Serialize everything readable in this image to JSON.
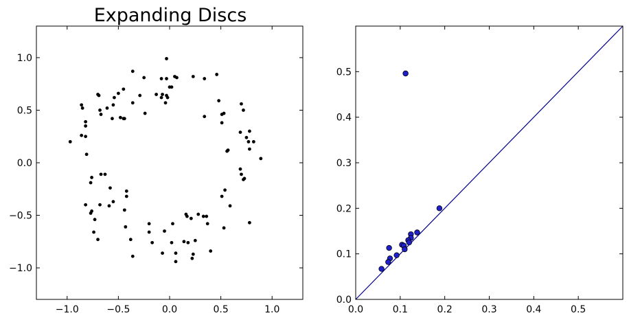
{
  "chart_data": [
    {
      "type": "scatter",
      "title": "Expanding Discs",
      "xlabel": "",
      "ylabel": "",
      "xlim": [
        -1.3,
        1.3
      ],
      "ylim": [
        -1.3,
        1.3
      ],
      "xticks": [
        -1.0,
        -0.5,
        0.0,
        0.5,
        1.0
      ],
      "yticks": [
        -1.0,
        -0.5,
        0.0,
        0.5,
        1.0
      ],
      "xtick_labels": [
        "−1.0",
        "−0.5",
        "0.0",
        "0.5",
        "1.0"
      ],
      "ytick_labels": [
        "−1.0",
        "−0.5",
        "0.0",
        "0.5",
        "1.0"
      ],
      "grid": false,
      "marker_color": "#000000",
      "points": [
        [
          -0.03,
          0.99
        ],
        [
          0.05,
          0.82
        ],
        [
          0.07,
          0.81
        ],
        [
          -0.36,
          0.87
        ],
        [
          -0.25,
          0.81
        ],
        [
          -0.08,
          0.8
        ],
        [
          -0.03,
          0.8
        ],
        [
          0.23,
          0.82
        ],
        [
          0.34,
          0.8
        ],
        [
          0.46,
          0.84
        ],
        [
          -0.45,
          0.7
        ],
        [
          -0.5,
          0.66
        ],
        [
          -0.29,
          0.64
        ],
        [
          -0.13,
          0.65
        ],
        [
          -0.08,
          0.62
        ],
        [
          -0.07,
          0.65
        ],
        [
          -0.03,
          0.64
        ],
        [
          0.02,
          0.72
        ],
        [
          0.0,
          0.72
        ],
        [
          -0.02,
          0.62
        ],
        [
          -0.7,
          0.65
        ],
        [
          -0.69,
          0.64
        ],
        [
          -0.54,
          0.62
        ],
        [
          -0.36,
          0.57
        ],
        [
          -0.61,
          0.52
        ],
        [
          -0.55,
          0.55
        ],
        [
          -0.24,
          0.47
        ],
        [
          -0.04,
          0.57
        ],
        [
          0.48,
          0.59
        ],
        [
          0.7,
          0.56
        ],
        [
          -0.68,
          0.5
        ],
        [
          -0.67,
          0.46
        ],
        [
          -0.85,
          0.52
        ],
        [
          -0.86,
          0.55
        ],
        [
          -0.56,
          0.42
        ],
        [
          -0.48,
          0.43
        ],
        [
          -0.45,
          0.42
        ],
        [
          -0.44,
          0.42
        ],
        [
          0.34,
          0.44
        ],
        [
          0.51,
          0.46
        ],
        [
          0.53,
          0.47
        ],
        [
          0.72,
          0.5
        ],
        [
          -0.82,
          0.39
        ],
        [
          -0.82,
          0.35
        ],
        [
          -0.86,
          0.26
        ],
        [
          -0.82,
          0.25
        ],
        [
          0.51,
          0.38
        ],
        [
          0.69,
          0.29
        ],
        [
          0.78,
          0.3
        ],
        [
          0.75,
          0.24
        ],
        [
          -0.97,
          0.2
        ],
        [
          0.77,
          0.2
        ],
        [
          0.82,
          0.2
        ],
        [
          0.56,
          0.11
        ],
        [
          0.57,
          0.12
        ],
        [
          0.78,
          0.13
        ],
        [
          -0.81,
          0.08
        ],
        [
          0.89,
          0.04
        ],
        [
          -0.67,
          -0.11
        ],
        [
          -0.63,
          -0.11
        ],
        [
          -0.76,
          -0.14
        ],
        [
          -0.77,
          -0.19
        ],
        [
          -0.58,
          -0.24
        ],
        [
          0.69,
          -0.06
        ],
        [
          0.7,
          -0.11
        ],
        [
          0.73,
          -0.15
        ],
        [
          0.72,
          -0.16
        ],
        [
          -0.42,
          -0.27
        ],
        [
          -0.42,
          -0.32
        ],
        [
          -0.55,
          -0.37
        ],
        [
          -0.68,
          -0.4
        ],
        [
          -0.59,
          -0.41
        ],
        [
          -0.82,
          -0.4
        ],
        [
          -0.76,
          -0.46
        ],
        [
          -0.44,
          -0.45
        ],
        [
          0.54,
          -0.26
        ],
        [
          0.51,
          -0.32
        ],
        [
          0.59,
          -0.41
        ],
        [
          -0.77,
          -0.48
        ],
        [
          -0.73,
          -0.54
        ],
        [
          -0.2,
          -0.58
        ],
        [
          0.16,
          -0.49
        ],
        [
          0.17,
          -0.51
        ],
        [
          0.21,
          -0.53
        ],
        [
          0.28,
          -0.49
        ],
        [
          0.33,
          -0.51
        ],
        [
          0.36,
          -0.51
        ],
        [
          0.37,
          -0.58
        ],
        [
          0.78,
          -0.57
        ],
        [
          -0.43,
          -0.61
        ],
        [
          -0.05,
          -0.65
        ],
        [
          0.03,
          -0.58
        ],
        [
          0.53,
          -0.62
        ],
        [
          -0.74,
          -0.66
        ],
        [
          -0.2,
          -0.66
        ],
        [
          -0.7,
          -0.73
        ],
        [
          -0.38,
          -0.73
        ],
        [
          -0.17,
          -0.76
        ],
        [
          0.14,
          -0.75
        ],
        [
          0.02,
          -0.76
        ],
        [
          0.18,
          -0.76
        ],
        [
          0.25,
          -0.74
        ],
        [
          -0.07,
          -0.86
        ],
        [
          0.06,
          -0.86
        ],
        [
          0.23,
          -0.87
        ],
        [
          0.4,
          -0.84
        ],
        [
          -0.36,
          -0.89
        ],
        [
          0.06,
          -0.94
        ],
        [
          0.22,
          -0.91
        ]
      ]
    },
    {
      "type": "scatter",
      "title": "",
      "xlabel": "",
      "ylabel": "",
      "xlim": [
        0.0,
        0.6
      ],
      "ylim": [
        0.0,
        0.6
      ],
      "xticks": [
        0.0,
        0.1,
        0.2,
        0.3,
        0.4,
        0.5
      ],
      "yticks": [
        0.0,
        0.1,
        0.2,
        0.3,
        0.4,
        0.5
      ],
      "xtick_labels": [
        "0.0",
        "0.1",
        "0.2",
        "0.3",
        "0.4",
        "0.5"
      ],
      "ytick_labels": [
        "0.0",
        "0.1",
        "0.2",
        "0.3",
        "0.4",
        "0.5"
      ],
      "grid": false,
      "marker_color": "#1f1fcc",
      "line_color": "#00008b",
      "reference_line": [
        [
          0.0,
          0.0
        ],
        [
          0.6,
          0.6
        ]
      ],
      "points": [
        [
          0.112,
          0.496
        ],
        [
          0.188,
          0.2
        ],
        [
          0.138,
          0.147
        ],
        [
          0.124,
          0.143
        ],
        [
          0.124,
          0.135
        ],
        [
          0.118,
          0.13
        ],
        [
          0.12,
          0.125
        ],
        [
          0.104,
          0.12
        ],
        [
          0.108,
          0.118
        ],
        [
          0.075,
          0.113
        ],
        [
          0.11,
          0.11
        ],
        [
          0.092,
          0.097
        ],
        [
          0.077,
          0.09
        ],
        [
          0.073,
          0.082
        ],
        [
          0.058,
          0.067
        ]
      ]
    }
  ]
}
